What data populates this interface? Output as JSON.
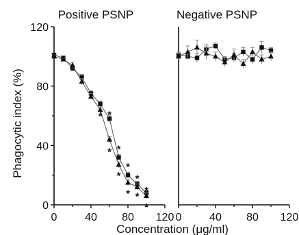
{
  "ylabel": "Phagocytic index (%)",
  "xlabel": "Concentration (μg/ml)",
  "chart_data": [
    {
      "type": "line",
      "title": "Positive PSNP",
      "xlabel": "Concentration (μg/ml)",
      "ylabel": "Phagocytic index (%)",
      "xlim": [
        0,
        120
      ],
      "ylim": [
        0,
        120
      ],
      "xticks": [
        0,
        40,
        80,
        120
      ],
      "yticks": [
        0,
        40,
        80,
        120
      ],
      "grid": false,
      "series": [
        {
          "marker": "square",
          "x": [
            0,
            10,
            20,
            30,
            40,
            50,
            60,
            70,
            80,
            90,
            100
          ],
          "y": [
            101,
            99,
            92,
            86,
            75,
            68,
            58,
            32,
            20,
            14,
            8
          ],
          "err": [
            1,
            1,
            2,
            2,
            2,
            2,
            2,
            2,
            2,
            2,
            2
          ]
        },
        {
          "marker": "triangle",
          "x": [
            0,
            10,
            20,
            30,
            40,
            50,
            60,
            70,
            80,
            90,
            100
          ],
          "y": [
            100,
            98,
            94,
            83,
            73,
            64,
            44,
            27,
            15,
            12,
            6
          ],
          "err": [
            1,
            1,
            2,
            2,
            2,
            2,
            2,
            2,
            2,
            2,
            2
          ]
        }
      ],
      "significance": [
        {
          "x": 50,
          "y": 62,
          "label": "*"
        },
        {
          "x": 60,
          "y": 63,
          "label": "*"
        },
        {
          "x": 60,
          "y": 38,
          "label": "*"
        },
        {
          "x": 70,
          "y": 40,
          "label": "*"
        },
        {
          "x": 70,
          "y": 22,
          "label": "*"
        },
        {
          "x": 80,
          "y": 28,
          "label": "*"
        },
        {
          "x": 80,
          "y": 10,
          "label": "*"
        },
        {
          "x": 90,
          "y": 20,
          "label": "*"
        },
        {
          "x": 90,
          "y": 8,
          "label": "*"
        },
        {
          "x": 100,
          "y": 12,
          "label": "*"
        },
        {
          "x": 100,
          "y": 1,
          "label": "*"
        }
      ]
    },
    {
      "type": "line",
      "title": "Negative PSNP",
      "xlim": [
        0,
        120
      ],
      "ylim": [
        0,
        120
      ],
      "xticks": [
        0,
        40,
        80,
        120
      ],
      "grid": false,
      "series": [
        {
          "marker": "square",
          "x": [
            0,
            10,
            20,
            30,
            40,
            50,
            60,
            70,
            80,
            90,
            100
          ],
          "y": [
            101,
            100,
            99,
            105,
            107,
            98,
            99,
            103,
            98,
            106,
            104
          ],
          "err": [
            2,
            2,
            3,
            3,
            2,
            2,
            3,
            3,
            3,
            4,
            2
          ]
        },
        {
          "marker": "triangle",
          "x": [
            0,
            10,
            20,
            30,
            40,
            50,
            60,
            70,
            80,
            90,
            100
          ],
          "y": [
            100,
            103,
            106,
            102,
            100,
            96,
            101,
            95,
            103,
            98,
            100
          ],
          "err": [
            2,
            4,
            5,
            4,
            3,
            3,
            4,
            3,
            3,
            3,
            3
          ]
        }
      ]
    }
  ]
}
